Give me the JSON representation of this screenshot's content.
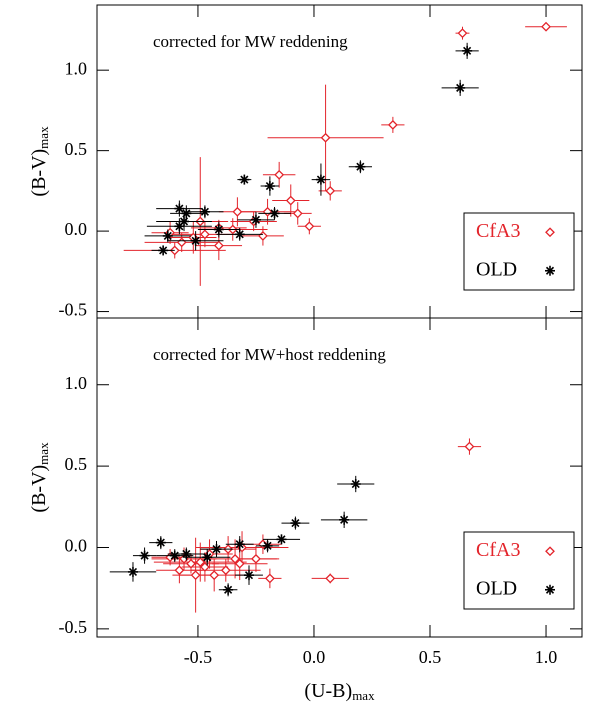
{
  "chart_data": [
    {
      "type": "scatter",
      "annotation": "corrected for MW reddening",
      "ylabel": "(B-V)",
      "ylabel_sub": "max",
      "xlim": [
        -0.935,
        1.155
      ],
      "ylim": [
        -0.54,
        1.405
      ],
      "yticks": [
        {
          "value": -0.5,
          "label": "-0.5"
        },
        {
          "value": 0,
          "label": "0.0"
        },
        {
          "value": 0.5,
          "label": "0.5"
        },
        {
          "value": 1,
          "label": "1.0"
        }
      ],
      "legend": "lower right",
      "grid": false,
      "series": [
        {
          "name": "CfA3",
          "color": "#e3242b",
          "marker": "diamond",
          "x": [
            1.0,
            0.64,
            0.34,
            0.05,
            0.07,
            -0.15,
            -0.1,
            -0.07,
            -0.02,
            -0.2,
            -0.26,
            -0.33,
            -0.35,
            -0.41,
            -0.47,
            -0.52,
            -0.57,
            -0.62,
            -0.6,
            -0.41,
            -0.22,
            -0.49
          ],
          "values": [
            1.27,
            1.23,
            0.66,
            0.58,
            0.25,
            0.35,
            0.19,
            0.11,
            0.03,
            0.12,
            0.06,
            0.12,
            0.01,
            0.02,
            -0.02,
            -0.04,
            -0.07,
            -0.01,
            -0.12,
            -0.09,
            -0.03,
            0.06
          ],
          "xerr": [
            0.09,
            0.03,
            0.05,
            0.25,
            0.05,
            0.07,
            0.08,
            0.06,
            0.05,
            0.12,
            0.1,
            0.08,
            0.15,
            0.12,
            0.14,
            0.1,
            0.16,
            0.08,
            0.22,
            0.1,
            0.09,
            0.12
          ],
          "yerr": [
            0.02,
            0.04,
            0.05,
            0.33,
            0.06,
            0.08,
            0.1,
            0.07,
            0.05,
            0.08,
            0.06,
            0.09,
            0.07,
            0.05,
            0.08,
            0.1,
            0.06,
            0.07,
            0.05,
            0.09,
            0.06,
            0.4
          ]
        },
        {
          "name": "OLD",
          "color": "#000000",
          "marker": "asterisk",
          "x": [
            0.66,
            0.63,
            0.2,
            0.03,
            -0.3,
            -0.19,
            -0.58,
            -0.56,
            -0.47,
            -0.65,
            -0.63,
            -0.55,
            -0.25,
            -0.32,
            -0.51,
            -0.41,
            -0.17,
            -0.58
          ],
          "values": [
            1.12,
            0.89,
            0.4,
            0.32,
            0.32,
            0.28,
            0.14,
            0.06,
            0.12,
            -0.12,
            -0.03,
            0.11,
            0.07,
            -0.02,
            -0.06,
            0.01,
            0.11,
            0.03
          ],
          "xerr": [
            0.05,
            0.08,
            0.05,
            0.04,
            0.03,
            0.04,
            0.1,
            0.12,
            0.08,
            0.05,
            0.1,
            0.07,
            0.08,
            0.1,
            0.12,
            0.09,
            0.07,
            0.14
          ],
          "yerr": [
            0.05,
            0.05,
            0.04,
            0.1,
            0.03,
            0.06,
            0.05,
            0.06,
            0.04,
            0.03,
            0.04,
            0.05,
            0.05,
            0.04,
            0.06,
            0.05,
            0.04,
            0.05
          ]
        }
      ]
    },
    {
      "type": "scatter",
      "annotation": "corrected for MW+host reddening",
      "ylabel": "(B-V)",
      "ylabel_sub": "max",
      "xlabel": "(U-B)",
      "xlabel_sub": "max",
      "xlim": [
        -0.935,
        1.155
      ],
      "ylim": [
        -0.55,
        1.41
      ],
      "xticks": [
        {
          "value": -0.5,
          "label": "-0.5"
        },
        {
          "value": 0,
          "label": "0.0"
        },
        {
          "value": 0.5,
          "label": "0.5"
        },
        {
          "value": 1,
          "label": "1.0"
        }
      ],
      "yticks": [
        {
          "value": -0.5,
          "label": "-0.5"
        },
        {
          "value": 0,
          "label": "0.0"
        },
        {
          "value": 0.5,
          "label": "0.5"
        },
        {
          "value": 1,
          "label": "1.0"
        }
      ],
      "legend": "lower right",
      "grid": false,
      "series": [
        {
          "name": "CfA3",
          "color": "#e3242b",
          "marker": "diamond",
          "x": [
            0.67,
            0.07,
            -0.19,
            -0.25,
            -0.32,
            -0.38,
            -0.45,
            -0.49,
            -0.53,
            -0.58,
            -0.62,
            -0.43,
            -0.51,
            -0.37,
            -0.31,
            -0.22,
            -0.34,
            -0.47,
            -0.56
          ],
          "values": [
            0.62,
            -0.19,
            -0.19,
            -0.07,
            -0.1,
            -0.14,
            -0.04,
            -0.09,
            -0.1,
            -0.14,
            -0.06,
            -0.17,
            -0.17,
            -0.01,
            0.0,
            0.02,
            -0.07,
            -0.12,
            -0.07
          ],
          "xerr": [
            0.05,
            0.08,
            0.05,
            0.1,
            0.12,
            0.15,
            0.1,
            0.2,
            0.12,
            0.1,
            0.08,
            0.15,
            0.1,
            0.12,
            0.2,
            0.08,
            0.18,
            0.1,
            0.14
          ],
          "yerr": [
            0.05,
            0.03,
            0.06,
            0.08,
            0.1,
            0.07,
            0.09,
            0.12,
            0.06,
            0.08,
            0.05,
            0.1,
            0.23,
            0.08,
            0.1,
            0.06,
            0.12,
            0.09,
            0.07
          ]
        },
        {
          "name": "OLD",
          "color": "#000000",
          "marker": "asterisk",
          "x": [
            0.18,
            0.13,
            -0.08,
            -0.78,
            -0.66,
            -0.37,
            -0.2,
            -0.32,
            -0.14,
            -0.73,
            -0.55,
            -0.46,
            -0.28,
            -0.6,
            -0.42
          ],
          "values": [
            0.39,
            0.17,
            0.15,
            -0.15,
            0.03,
            -0.26,
            0.01,
            0.02,
            0.05,
            -0.05,
            -0.04,
            -0.06,
            -0.17,
            -0.05,
            -0.01
          ],
          "xerr": [
            0.08,
            0.1,
            0.06,
            0.1,
            0.05,
            0.04,
            0.05,
            0.06,
            0.08,
            0.05,
            0.08,
            0.1,
            0.06,
            0.08,
            0.07
          ],
          "yerr": [
            0.05,
            0.05,
            0.04,
            0.06,
            0.04,
            0.04,
            0.04,
            0.05,
            0.03,
            0.05,
            0.04,
            0.05,
            0.06,
            0.04,
            0.05
          ]
        }
      ]
    }
  ]
}
